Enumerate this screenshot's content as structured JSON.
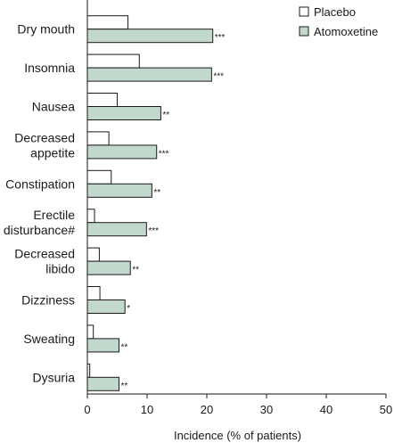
{
  "chart_data": {
    "type": "bar",
    "orientation": "horizontal",
    "categories": [
      [
        "Dry mouth"
      ],
      [
        "Insomnia"
      ],
      [
        "Nausea"
      ],
      [
        "Decreased",
        "appetite"
      ],
      [
        "Constipation"
      ],
      [
        "Erectile",
        "disturbance#"
      ],
      [
        "Decreased",
        "libido"
      ],
      [
        "Dizziness"
      ],
      [
        "Sweating"
      ],
      [
        "Dysuria"
      ]
    ],
    "series": [
      {
        "name": "Placebo",
        "color": "#ffffff",
        "values": [
          6.8,
          8.7,
          5.0,
          3.6,
          4.0,
          1.2,
          2.0,
          2.1,
          1.0,
          0.4
        ]
      },
      {
        "name": "Atomoxetine",
        "color": "#c2d8cc",
        "values": [
          21.0,
          20.8,
          12.3,
          11.6,
          10.8,
          9.9,
          7.2,
          6.3,
          5.3,
          5.3
        ]
      }
    ],
    "significance": [
      "***",
      "***",
      "**",
      "***",
      "**",
      "***",
      "**",
      "*",
      "**",
      "**"
    ],
    "xlabel": "Incidence (% of patients)",
    "xlim": [
      0,
      50
    ],
    "xticks": [
      0,
      10,
      20,
      30,
      40,
      50
    ],
    "legend_position": "top-right",
    "grid": false
  }
}
